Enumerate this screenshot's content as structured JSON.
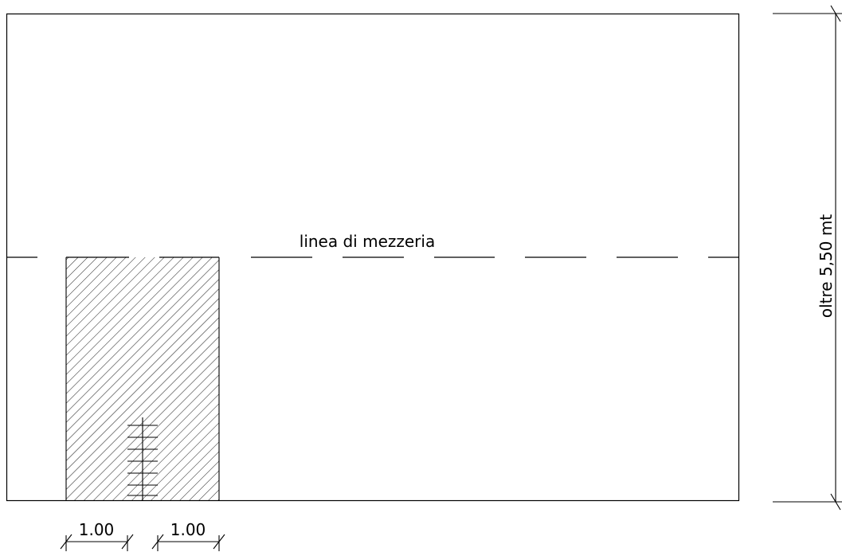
{
  "labels": {
    "centerline": "linea di mezzeria",
    "height_dimension": "oltre 5,50 mt",
    "width_dimension_left": "1.00",
    "width_dimension_right": "1.00"
  },
  "colors": {
    "line": "#000000",
    "background": "#ffffff"
  }
}
